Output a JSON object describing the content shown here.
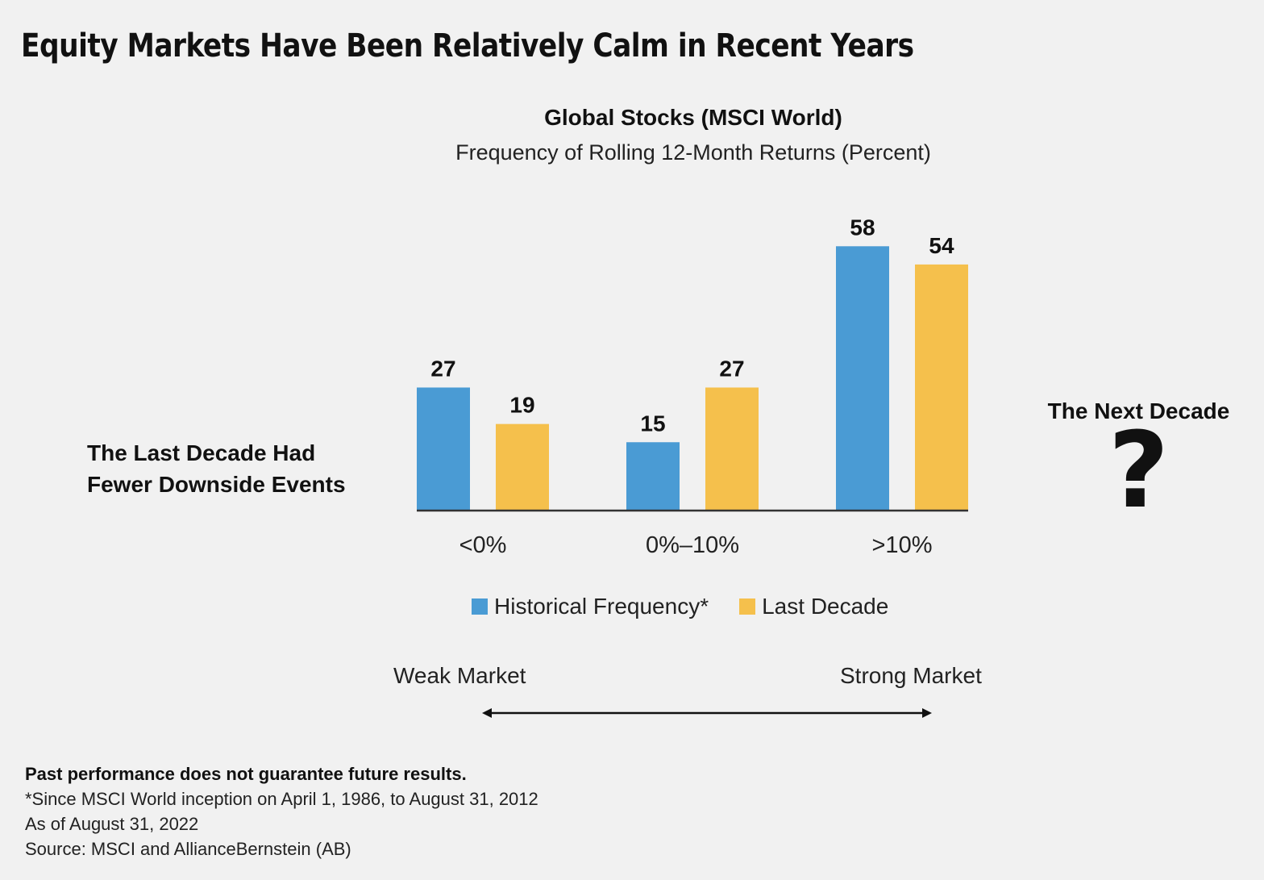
{
  "page": {
    "title": "Equity Markets Have Been Relatively Calm in Recent Years"
  },
  "annotations": {
    "left_line1": "The Last Decade Had",
    "left_line2": "Fewer Downside Events",
    "right_title": "The Next Decade",
    "right_symbol": "?"
  },
  "market_scale": {
    "weak": "Weak Market",
    "strong": "Strong Market"
  },
  "footnotes": {
    "disclaimer": "Past performance does not guarantee future results.",
    "note": "*Since MSCI World inception on April 1, 1986, to August 31, 2012",
    "as_of": "As of August 31, 2022",
    "source": "Source: MSCI and AllianceBernstein (AB)"
  },
  "colors": {
    "historical": "#4a9bd4",
    "last_decade": "#f5c04c",
    "axis": "#333333"
  },
  "chart_data": {
    "type": "bar",
    "title": "Global Stocks (MSCI World)",
    "subtitle": "Frequency of Rolling 12-Month Returns (Percent)",
    "categories": [
      "<0%",
      "0%–10%",
      ">10%"
    ],
    "series": [
      {
        "name": "Historical Frequency*",
        "values": [
          27,
          15,
          58
        ]
      },
      {
        "name": "Last Decade",
        "values": [
          19,
          27,
          54
        ]
      }
    ],
    "ylim": [
      0,
      60
    ],
    "grid": false,
    "legend": "bottom"
  }
}
